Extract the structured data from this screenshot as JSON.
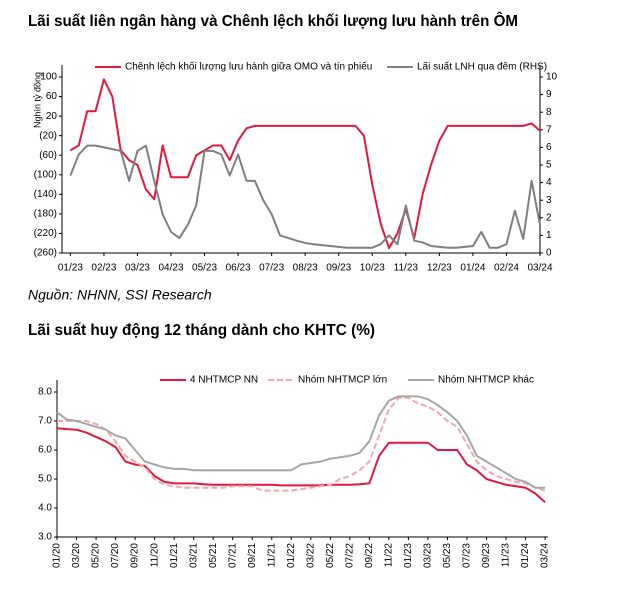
{
  "chart_data": [
    {
      "type": "line",
      "title": "Lãi suất liên ngân hàng và Chênh lệch khối lượng lưu hành trên ÔM",
      "ylabel": "Nghìn tỷ đồng",
      "source": "Nguồn: NHNN, SSI Research",
      "x": [
        0,
        0.25,
        0.5,
        0.75,
        1,
        1.25,
        1.5,
        1.75,
        2,
        2.25,
        2.5,
        2.75,
        3,
        3.25,
        3.5,
        3.75,
        4,
        4.25,
        4.5,
        4.75,
        5,
        5.25,
        5.5,
        5.75,
        6,
        6.25,
        6.5,
        6.75,
        7,
        7.25,
        7.5,
        7.75,
        8,
        8.25,
        8.5,
        8.75,
        9,
        9.25,
        9.5,
        9.75,
        10,
        10.25,
        10.5,
        10.75,
        11,
        11.25,
        11.5,
        11.75,
        12,
        12.25,
        12.5,
        12.75,
        13,
        13.25,
        13.5,
        13.75,
        14
      ],
      "xlim": [
        -0.25,
        14
      ],
      "xticks": [
        {
          "value": 0,
          "label": "01/23"
        },
        {
          "value": 1,
          "label": "02/23"
        },
        {
          "value": 2,
          "label": "03/23"
        },
        {
          "value": 3,
          "label": "04/23"
        },
        {
          "value": 4,
          "label": "05/23"
        },
        {
          "value": 5,
          "label": "06/23"
        },
        {
          "value": 6,
          "label": "07/23"
        },
        {
          "value": 7,
          "label": "08/23"
        },
        {
          "value": 8,
          "label": "09/23"
        },
        {
          "value": 9,
          "label": "10/23"
        },
        {
          "value": 10,
          "label": "11/23"
        },
        {
          "value": 11,
          "label": "12/23"
        },
        {
          "value": 12,
          "label": "01/24"
        },
        {
          "value": 13,
          "label": "02/24"
        },
        {
          "value": 14,
          "label": "03/24"
        }
      ],
      "ylim": [
        -260,
        100
      ],
      "yticks": [
        100,
        60,
        20,
        {
          "value": -20,
          "label": "(20)"
        },
        {
          "value": -60,
          "label": "(60)"
        },
        {
          "value": -100,
          "label": "(100)"
        },
        {
          "value": -140,
          "label": "(140)"
        },
        {
          "value": -180,
          "label": "(180)"
        },
        {
          "value": -220,
          "label": "(220)"
        },
        {
          "value": -260,
          "label": "(260)"
        }
      ],
      "y2lim": [
        0,
        10
      ],
      "y2ticks": [
        0,
        1,
        2,
        3,
        4,
        5,
        6,
        7,
        8,
        9,
        10
      ],
      "series": [
        {
          "name": "Chênh lệch khối lượng lưu hành giữa OMO và tín phiếu",
          "color": "#e4173e",
          "values": [
            -50,
            -40,
            30,
            30,
            95,
            60,
            -50,
            -70,
            -80,
            -130,
            -150,
            -40,
            -105,
            -105,
            -105,
            -60,
            -50,
            -40,
            -40,
            -70,
            -30,
            -5,
            0,
            0,
            0,
            0,
            0,
            0,
            0,
            0,
            0,
            0,
            0,
            0,
            0,
            -20,
            -120,
            -200,
            -250,
            -220,
            -170,
            -230,
            -140,
            -80,
            -30,
            0,
            0,
            0,
            0,
            0,
            0,
            0,
            0,
            0,
            0,
            5,
            -10
          ]
        },
        {
          "name": "Lãi suất LNH qua đêm (RHS)",
          "color": "#7f7f7f",
          "axis": "y2",
          "values": [
            4.4,
            5.6,
            6.1,
            6.1,
            6.0,
            5.9,
            5.8,
            4.1,
            5.8,
            6.1,
            4.1,
            2.2,
            1.2,
            0.85,
            1.6,
            2.7,
            5.8,
            5.8,
            5.6,
            4.4,
            5.6,
            4.1,
            4.1,
            3.0,
            2.2,
            1.0,
            0.85,
            0.7,
            0.57,
            0.5,
            0.45,
            0.4,
            0.35,
            0.3,
            0.3,
            0.3,
            0.3,
            0.5,
            1.0,
            0.5,
            2.7,
            0.7,
            0.6,
            0.4,
            0.35,
            0.3,
            0.3,
            0.35,
            0.4,
            1.2,
            0.3,
            0.3,
            0.5,
            2.4,
            0.8,
            4.1,
            1.6
          ]
        }
      ]
    },
    {
      "type": "line",
      "title": "Lãi suất huy động 12 tháng dành cho KHTC (%)",
      "x": [
        0,
        1,
        2,
        3,
        4,
        5,
        6,
        7,
        8,
        9,
        10,
        11,
        12,
        13,
        14,
        15,
        16,
        17,
        18,
        19,
        20,
        21,
        22,
        23,
        24,
        25,
        26,
        27,
        28,
        29,
        30,
        31,
        32,
        33,
        34,
        35,
        36,
        37,
        38,
        39,
        40,
        41,
        42,
        43,
        44,
        45,
        46,
        47,
        48,
        49,
        50
      ],
      "xlim": [
        0,
        50.3
      ],
      "xticks": [
        {
          "value": 0,
          "label": "01/20"
        },
        {
          "value": 2,
          "label": "03/20"
        },
        {
          "value": 4,
          "label": "05/20"
        },
        {
          "value": 6,
          "label": "07/20"
        },
        {
          "value": 8,
          "label": "09/20"
        },
        {
          "value": 10,
          "label": "11/20"
        },
        {
          "value": 12,
          "label": "01/21"
        },
        {
          "value": 14,
          "label": "03/21"
        },
        {
          "value": 16,
          "label": "05/21"
        },
        {
          "value": 18,
          "label": "07/21"
        },
        {
          "value": 20,
          "label": "09/21"
        },
        {
          "value": 22,
          "label": "11/21"
        },
        {
          "value": 24,
          "label": "01/22"
        },
        {
          "value": 26,
          "label": "03/22"
        },
        {
          "value": 28,
          "label": "05/22"
        },
        {
          "value": 30,
          "label": "07/22"
        },
        {
          "value": 32,
          "label": "09/22"
        },
        {
          "value": 34,
          "label": "11/22"
        },
        {
          "value": 36,
          "label": "01/23"
        },
        {
          "value": 38,
          "label": "03/23"
        },
        {
          "value": 40,
          "label": "05/23"
        },
        {
          "value": 42,
          "label": "07/23"
        },
        {
          "value": 44,
          "label": "09/23"
        },
        {
          "value": 46,
          "label": "11/23"
        },
        {
          "value": 48,
          "label": "01/24"
        },
        {
          "value": 50,
          "label": "03/24"
        }
      ],
      "ylim": [
        3,
        8
      ],
      "yticks": [
        {
          "value": 3,
          "label": "3.0"
        },
        {
          "value": 4,
          "label": "4.0"
        },
        {
          "value": 5,
          "label": "5.0"
        },
        {
          "value": 6,
          "label": "6.0"
        },
        {
          "value": 7,
          "label": "7.0"
        },
        {
          "value": 8,
          "label": "8.0"
        }
      ],
      "series": [
        {
          "name": "4 NHTMCP NN",
          "color": "#e4173e",
          "linestyle": "solid",
          "values": [
            6.75,
            6.72,
            6.7,
            6.6,
            6.45,
            6.3,
            6.1,
            5.6,
            5.5,
            5.45,
            5.1,
            4.9,
            4.85,
            4.85,
            4.85,
            4.82,
            4.8,
            4.8,
            4.8,
            4.8,
            4.8,
            4.8,
            4.8,
            4.78,
            4.78,
            4.78,
            4.78,
            4.78,
            4.8,
            4.8,
            4.8,
            4.82,
            4.85,
            5.8,
            6.25,
            6.25,
            6.25,
            6.25,
            6.25,
            6.0,
            6.0,
            6.0,
            5.5,
            5.3,
            5.0,
            4.9,
            4.8,
            4.75,
            4.7,
            4.5,
            4.2
          ]
        },
        {
          "name": "Nhóm NHTMCP lớn",
          "color": "#f4a6b0",
          "linestyle": "dashed",
          "values": [
            7.0,
            7.0,
            7.0,
            7.0,
            6.9,
            6.7,
            6.3,
            5.8,
            5.6,
            5.4,
            5.0,
            4.8,
            4.75,
            4.7,
            4.7,
            4.7,
            4.7,
            4.7,
            4.75,
            4.75,
            4.75,
            4.6,
            4.6,
            4.6,
            4.6,
            4.65,
            4.7,
            4.75,
            4.8,
            5.0,
            5.1,
            5.3,
            5.6,
            6.5,
            7.4,
            7.8,
            7.8,
            7.6,
            7.5,
            7.3,
            7.0,
            6.8,
            6.2,
            5.6,
            5.3,
            5.1,
            5.0,
            4.9,
            4.85,
            4.7,
            4.6
          ]
        },
        {
          "name": "Nhóm NHTMCP khác",
          "color": "#a6a6a6",
          "linestyle": "solid",
          "values": [
            7.3,
            7.05,
            7.0,
            6.9,
            6.8,
            6.7,
            6.5,
            6.4,
            6.0,
            5.6,
            5.5,
            5.4,
            5.35,
            5.35,
            5.3,
            5.3,
            5.3,
            5.3,
            5.3,
            5.3,
            5.3,
            5.3,
            5.3,
            5.3,
            5.3,
            5.5,
            5.55,
            5.6,
            5.7,
            5.75,
            5.8,
            5.9,
            6.3,
            7.2,
            7.7,
            7.85,
            7.85,
            7.85,
            7.75,
            7.55,
            7.3,
            7.0,
            6.5,
            5.8,
            5.6,
            5.4,
            5.2,
            5.0,
            4.9,
            4.7,
            4.7
          ]
        }
      ]
    }
  ]
}
